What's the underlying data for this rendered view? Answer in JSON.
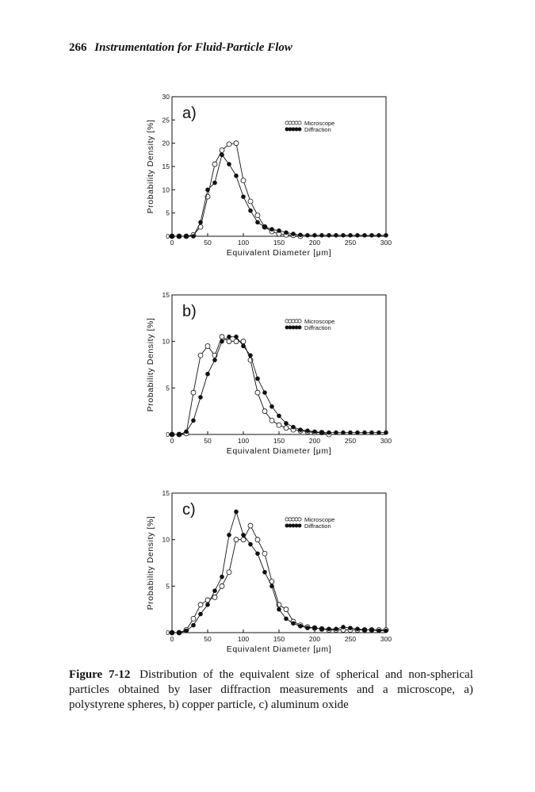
{
  "header": {
    "page_number": "266",
    "title": "Instrumentation for Fluid-Particle Flow"
  },
  "chart_data": [
    {
      "type": "line",
      "panel_label": "a)",
      "xlabel": "Equivalent Diameter [μm]",
      "ylabel": "Probability Density [%]",
      "xlim": [
        0,
        300
      ],
      "ylim": [
        0,
        30
      ],
      "xticks": [
        "0",
        "50",
        "100",
        "150",
        "200",
        "250",
        "300"
      ],
      "yticks": [
        "0",
        "5",
        "10",
        "15",
        "20",
        "25",
        "30"
      ],
      "legend": {
        "position": "top-right",
        "entries": [
          "Microscope",
          "Diffraction"
        ]
      },
      "series": [
        {
          "name": "Microscope",
          "marker": "open-circle",
          "x": [
            0,
            10,
            20,
            30,
            40,
            50,
            60,
            70,
            80,
            90,
            100,
            110,
            120,
            130,
            140,
            150,
            160,
            170,
            180
          ],
          "y": [
            0,
            0,
            0,
            0.3,
            2.0,
            8.5,
            15.5,
            18.5,
            19.8,
            20.0,
            12.0,
            7.5,
            4.5,
            2.0,
            1.0,
            0.5,
            0.3,
            0.2,
            0
          ]
        },
        {
          "name": "Diffraction",
          "marker": "filled-circle",
          "x": [
            0,
            10,
            20,
            30,
            40,
            50,
            60,
            70,
            80,
            90,
            100,
            110,
            120,
            130,
            140,
            150,
            160,
            170,
            180,
            190,
            200,
            210,
            220,
            230,
            240,
            250,
            260,
            270,
            280,
            290,
            300
          ],
          "y": [
            0,
            0,
            0,
            0,
            3.0,
            10.0,
            11.5,
            17.5,
            15.5,
            13.0,
            8.5,
            5.5,
            3.0,
            2.0,
            1.5,
            1.2,
            0.8,
            0.5,
            0.3,
            0.2,
            0.2,
            0.2,
            0.2,
            0.2,
            0.2,
            0.2,
            0.2,
            0.2,
            0.2,
            0.2,
            0.2
          ]
        }
      ]
    },
    {
      "type": "line",
      "panel_label": "b)",
      "xlabel": "Equivalent Diameter [μm]",
      "ylabel": "Probability Density [%]",
      "xlim": [
        0,
        300
      ],
      "ylim": [
        0,
        15
      ],
      "xticks": [
        "0",
        "50",
        "100",
        "150",
        "200",
        "250",
        "300"
      ],
      "yticks": [
        "0",
        "5",
        "10",
        "15"
      ],
      "legend": {
        "position": "top-right",
        "entries": [
          "Microscope",
          "Diffraction"
        ]
      },
      "series": [
        {
          "name": "Microscope",
          "marker": "open-circle",
          "x": [
            0,
            10,
            20,
            30,
            40,
            50,
            60,
            70,
            80,
            90,
            100,
            110,
            120,
            130,
            140,
            150,
            160,
            170,
            180,
            190,
            200,
            210,
            220
          ],
          "y": [
            0,
            0,
            0.1,
            4.5,
            8.5,
            9.5,
            8.5,
            10.5,
            10.0,
            10.0,
            10.0,
            8.0,
            4.5,
            2.5,
            1.5,
            1.0,
            0.7,
            0.5,
            0.4,
            0.3,
            0.2,
            0.2,
            0
          ]
        },
        {
          "name": "Diffraction",
          "marker": "filled-circle",
          "x": [
            0,
            10,
            20,
            30,
            40,
            50,
            60,
            70,
            80,
            90,
            100,
            110,
            120,
            130,
            140,
            150,
            160,
            170,
            180,
            190,
            200,
            210,
            220,
            230,
            240,
            250,
            260,
            270,
            280,
            290,
            300
          ],
          "y": [
            0,
            0,
            0.3,
            1.5,
            4.0,
            6.5,
            8.0,
            10.0,
            10.5,
            10.5,
            9.5,
            8.5,
            6.0,
            4.5,
            3.0,
            2.0,
            1.2,
            0.8,
            0.5,
            0.4,
            0.3,
            0.2,
            0.2,
            0.2,
            0.2,
            0.2,
            0.2,
            0.2,
            0.2,
            0.2,
            0.2
          ]
        }
      ]
    },
    {
      "type": "line",
      "panel_label": "c)",
      "xlabel": "Equivalent Diameter [μm]",
      "ylabel": "Probability Density [%]",
      "xlim": [
        0,
        300
      ],
      "ylim": [
        0,
        15
      ],
      "xticks": [
        "0",
        "50",
        "100",
        "150",
        "200",
        "250",
        "300"
      ],
      "yticks": [
        "0",
        "5",
        "10",
        "15"
      ],
      "legend": {
        "position": "top-right",
        "entries": [
          "Microscope",
          "Diffraction"
        ]
      },
      "series": [
        {
          "name": "Microscope",
          "marker": "open-circle",
          "x": [
            0,
            10,
            20,
            30,
            40,
            50,
            60,
            70,
            80,
            90,
            100,
            110,
            120,
            130,
            140,
            150,
            160,
            170,
            180,
            190,
            200,
            210,
            220,
            230,
            240,
            250,
            260,
            270,
            280,
            290,
            300
          ],
          "y": [
            0,
            0,
            0.3,
            1.5,
            3.0,
            3.5,
            3.8,
            5.0,
            6.5,
            10.0,
            10.0,
            11.5,
            10.0,
            8.5,
            5.5,
            3.0,
            2.5,
            1.2,
            0.8,
            0.6,
            0.5,
            0.4,
            0.3,
            0.3,
            0.3,
            0.3,
            0.3,
            0.3,
            0.3,
            0.3,
            0.3
          ]
        },
        {
          "name": "Diffraction",
          "marker": "filled-circle",
          "x": [
            0,
            10,
            20,
            30,
            40,
            50,
            60,
            70,
            80,
            90,
            100,
            110,
            120,
            130,
            140,
            150,
            160,
            170,
            180,
            190,
            200,
            210,
            220,
            230,
            240,
            250,
            260,
            270,
            280,
            290,
            300
          ],
          "y": [
            0,
            0,
            0.2,
            0.8,
            2.0,
            3.0,
            4.5,
            6.0,
            10.5,
            13.0,
            10.5,
            9.5,
            8.5,
            6.5,
            5.0,
            2.5,
            1.5,
            1.0,
            0.7,
            0.5,
            0.5,
            0.4,
            0.4,
            0.4,
            0.6,
            0.5,
            0.4,
            0.3,
            0.3,
            0.2,
            0.2
          ]
        }
      ]
    }
  ],
  "caption": {
    "label": "Figure 7-12",
    "text": "Distribution of the equivalent size of spherical and non-spherical particles obtained by laser diffraction measurements and a microscope, a) polystyrene spheres, b) copper particle, c) aluminum oxide"
  }
}
